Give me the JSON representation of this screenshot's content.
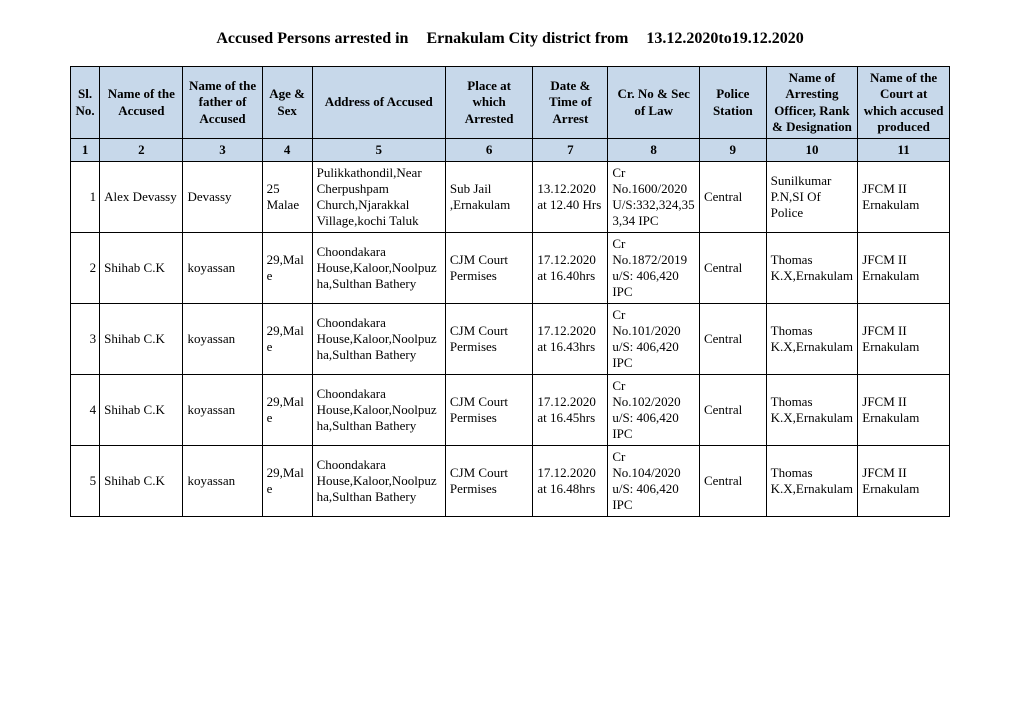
{
  "title": {
    "part1": "Accused Persons arrested in",
    "part2": "Ernakulam City  district from",
    "part3": "13.12.2020to19.12.2020"
  },
  "headers": {
    "h1": "Sl. No.",
    "h2": "Name of the Accused",
    "h3": "Name of the father of Accused",
    "h4": "Age & Sex",
    "h5": "Address of Accused",
    "h6": "Place at which Arrested",
    "h7": "Date & Time of Arrest",
    "h8": "Cr. No & Sec of Law",
    "h9": "Police Station",
    "h10": "Name of Arresting Officer, Rank & Designation",
    "h11": "Name of the Court at which accused produced"
  },
  "numrow": {
    "n1": "1",
    "n2": "2",
    "n3": "3",
    "n4": "4",
    "n5": "5",
    "n6": "6",
    "n7": "7",
    "n8": "8",
    "n9": "9",
    "n10": "10",
    "n11": "11"
  },
  "rows": [
    {
      "sl": "1",
      "name": "Alex Devassy",
      "father": "Devassy",
      "agesex": "25 Malae",
      "address": "Pulikkathondil,Near Cherpushpam Church,Njarakkal Village,kochi Taluk",
      "place": "Sub Jail ,Ernakulam",
      "datetime": "13.12.2020 at 12.40 Hrs",
      "crno": "Cr No.1600/2020 U/S:332,324,353,34 IPC",
      "station": "Central",
      "officer": "Sunilkumar P.N,SI Of Police",
      "court": "JFCM II Ernakulam"
    },
    {
      "sl": "2",
      "name": "Shihab C.K",
      "father": "koyassan",
      "agesex": "29,Male",
      "address": "Choondakara House,Kaloor,Noolpuzha,Sulthan Bathery",
      "place": "CJM Court Permises",
      "datetime": "17.12.2020 at 16.40hrs",
      "crno": "Cr No.1872/2019 u/S: 406,420 IPC",
      "station": "Central",
      "officer": "Thomas K.X,Ernakulam",
      "court": "JFCM II Ernakulam"
    },
    {
      "sl": "3",
      "name": "Shihab C.K",
      "father": "koyassan",
      "agesex": "29,Male",
      "address": "Choondakara House,Kaloor,Noolpuzha,Sulthan Bathery",
      "place": "CJM Court Permises",
      "datetime": "17.12.2020 at 16.43hrs",
      "crno": "Cr No.101/2020 u/S: 406,420 IPC",
      "station": "Central",
      "officer": "Thomas K.X,Ernakulam",
      "court": "JFCM II Ernakulam"
    },
    {
      "sl": "4",
      "name": "Shihab C.K",
      "father": "koyassan",
      "agesex": "29,Male",
      "address": "Choondakara House,Kaloor,Noolpuzha,Sulthan Bathery",
      "place": "CJM Court Permises",
      "datetime": "17.12.2020 at 16.45hrs",
      "crno": "Cr No.102/2020 u/S: 406,420 IPC",
      "station": "Central",
      "officer": "Thomas K.X,Ernakulam",
      "court": "JFCM II Ernakulam"
    },
    {
      "sl": "5",
      "name": "Shihab C.K",
      "father": "koyassan",
      "agesex": "29,Male",
      "address": "Choondakara House,Kaloor,Noolpuzha,Sulthan Bathery",
      "place": "CJM Court Permises",
      "datetime": "17.12.2020 at 16.48hrs",
      "crno": "Cr No.104/2020 u/S: 406,420 IPC",
      "station": "Central",
      "officer": "Thomas K.X,Ernakulam",
      "court": "JFCM II Ernakulam"
    }
  ]
}
